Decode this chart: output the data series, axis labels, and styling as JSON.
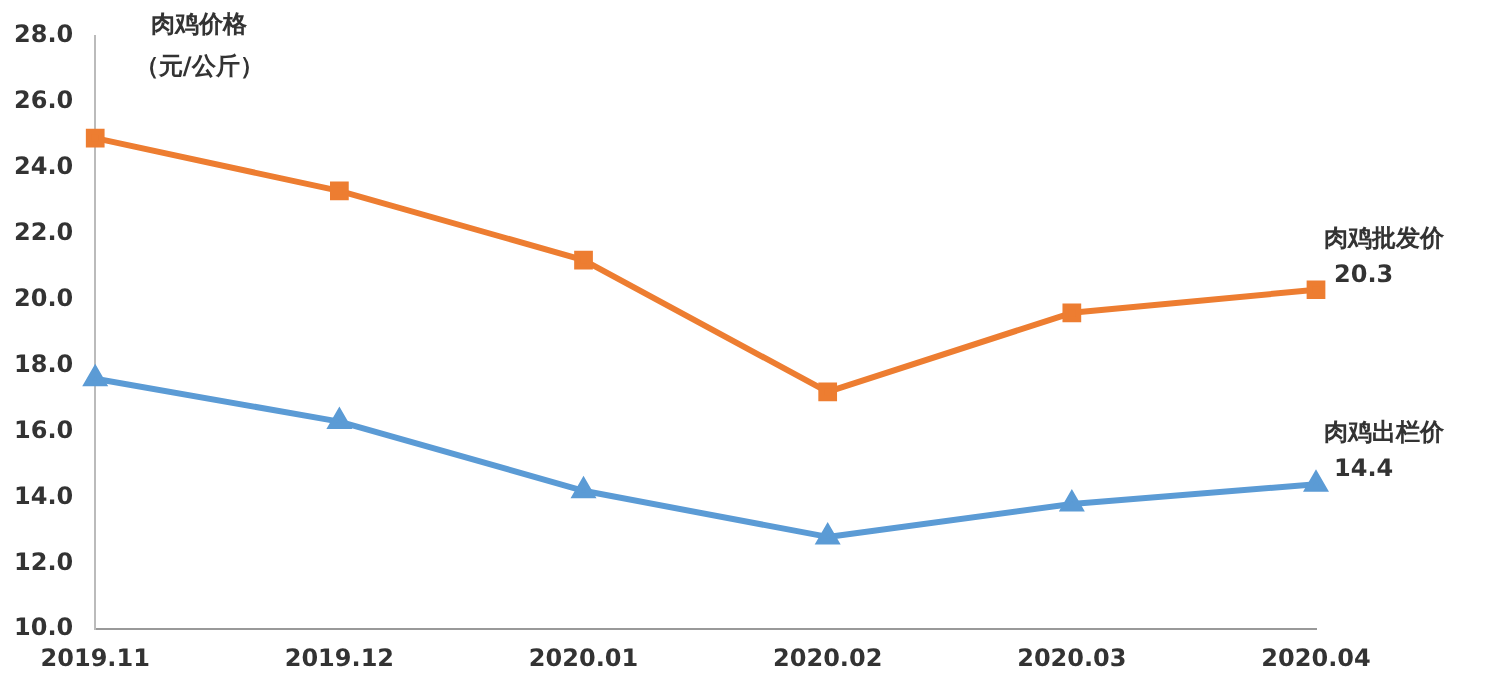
{
  "chart_data": {
    "type": "line",
    "ylabel": "肉鸡价格（元/公斤）",
    "categories": [
      "2019.11",
      "2019.12",
      "2020.01",
      "2020.02",
      "2020.03",
      "2020.04"
    ],
    "series": [
      {
        "name": "肉鸡批发价",
        "color": "#ed7d31",
        "marker": "square",
        "values": [
          24.9,
          23.3,
          21.2,
          17.2,
          19.6,
          20.3
        ],
        "value_labels": [
          null,
          null,
          null,
          null,
          null,
          "20.3"
        ]
      },
      {
        "name": "肉鸡出栏价",
        "color": "#5b9bd5",
        "marker": "triangle",
        "values": [
          17.6,
          16.3,
          14.2,
          12.8,
          13.8,
          14.4
        ],
        "value_labels": [
          null,
          null,
          null,
          null,
          null,
          "14.4"
        ]
      }
    ],
    "ylim": [
      10,
      28
    ],
    "yticks": [
      {
        "value": 10,
        "label": "10.0"
      },
      {
        "value": 12,
        "label": "12.0"
      },
      {
        "value": 14,
        "label": "14.0"
      },
      {
        "value": 16,
        "label": "16.0"
      },
      {
        "value": 18,
        "label": "18.0"
      },
      {
        "value": 20,
        "label": "20.0"
      },
      {
        "value": 22,
        "label": "22.0"
      },
      {
        "value": 24,
        "label": "24.0"
      },
      {
        "value": 26,
        "label": "26.0"
      },
      {
        "value": 28,
        "label": "28.0"
      }
    ],
    "grid": false,
    "legend": false,
    "line_style": "solid"
  }
}
